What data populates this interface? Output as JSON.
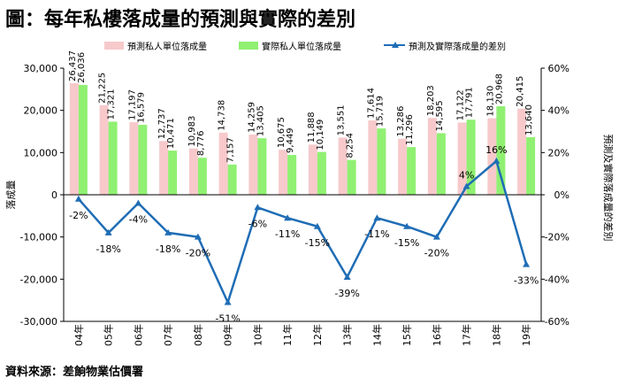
{
  "title": "圖：每年私樓落成量的預測與實際的差別",
  "source": "資料來源：差餉物業估價署",
  "colors": {
    "predicted": "#f7c9cb",
    "actual": "#90f072",
    "diff": "#1f6db5"
  },
  "chart_data": {
    "type": "bar",
    "categories": [
      "04年",
      "05年",
      "06年",
      "07年",
      "08年",
      "09年",
      "10年",
      "11年",
      "12年",
      "13年",
      "14年",
      "15年",
      "16年",
      "17年",
      "18年",
      "19年"
    ],
    "series": [
      {
        "name": "預測私人單位落成量",
        "type": "bar",
        "axis": "left",
        "values": [
          26437,
          21225,
          17197,
          12737,
          10983,
          14738,
          14259,
          10675,
          11888,
          13551,
          17614,
          13286,
          18203,
          17122,
          18130,
          20415
        ],
        "labels": [
          "26,437",
          "21,225",
          "17,197",
          "12,737",
          "10,983",
          "14,738",
          "14,259",
          "10,675",
          "11,888",
          "13,551",
          "17,614",
          "13,286",
          "18,203",
          "17,122",
          "18,130",
          "20,415"
        ]
      },
      {
        "name": "實際私人單位落成量",
        "type": "bar",
        "axis": "left",
        "values": [
          26036,
          17321,
          16579,
          10471,
          8776,
          7157,
          13405,
          9449,
          10149,
          8254,
          15719,
          11296,
          14595,
          17791,
          20968,
          13640
        ],
        "labels": [
          "26,036",
          "17,321",
          "16,579",
          "10,471",
          "8,776",
          "7,157",
          "13,405",
          "9,449",
          "10,149",
          "8,254",
          "15,719",
          "11,296",
          "14,595",
          "17,791",
          "20,968",
          "13,640"
        ]
      },
      {
        "name": "預測及實際落成量的差別",
        "type": "line",
        "axis": "right",
        "values": [
          -2,
          -18,
          -4,
          -18,
          -20,
          -51,
          -6,
          -11,
          -15,
          -39,
          -11,
          -15,
          -20,
          4,
          16,
          -33
        ],
        "labels": [
          "-2%",
          "-18%",
          "-4%",
          "-18%",
          "-20%",
          "-51%",
          "-6%",
          "-11%",
          "-15%",
          "-39%",
          "-11%",
          "-15%",
          "-20%",
          "4%",
          "16%",
          "-33%"
        ]
      }
    ],
    "ylim": [
      -30000,
      30000
    ],
    "yticks": [
      "30,000",
      "20,000",
      "10,000",
      "0",
      "-10,000",
      "-20,000",
      "-30,000"
    ],
    "ylim_right": [
      -60,
      60
    ],
    "yticks_right": [
      "60%",
      "40%",
      "20%",
      "0%",
      "-20%",
      "-40%",
      "-60%"
    ],
    "ylabel": "落成量",
    "ylabel_right": "預測及實際落成量的差別",
    "legend": "top"
  }
}
